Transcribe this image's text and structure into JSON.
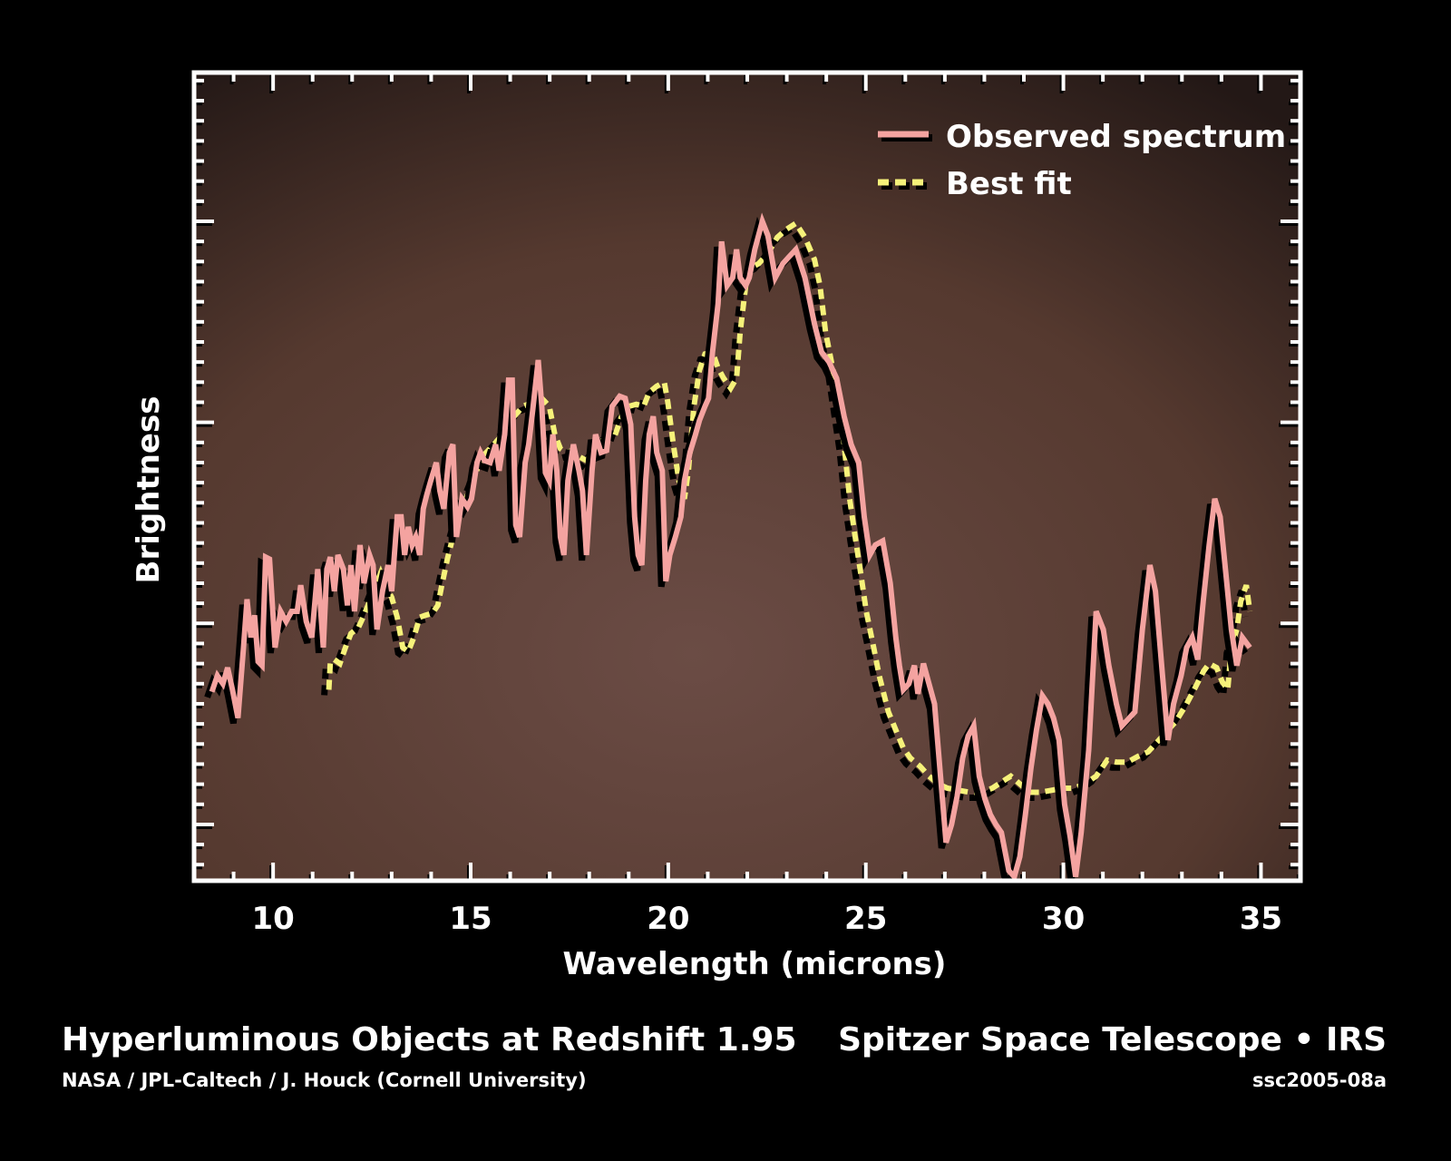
{
  "chart_data": {
    "type": "line",
    "xlabel": "Wavelength (microns)",
    "ylabel": "Brightness",
    "xlim": [
      8,
      36
    ],
    "ylim": [
      0.72,
      4.74
    ],
    "x_ticks": [
      10,
      15,
      20,
      25,
      30,
      35
    ],
    "x_tick_labels": [
      "10",
      "15",
      "20",
      "25",
      "30",
      "35"
    ],
    "y_tick_labels": [],
    "legend_position": "top-right",
    "grid": false,
    "series": [
      {
        "name": "Observed spectrum",
        "color": "#f4a3a0",
        "style": "solid",
        "x": [
          8.45,
          8.59,
          8.73,
          8.85,
          8.97,
          9.11,
          9.25,
          9.34,
          9.44,
          9.53,
          9.62,
          9.72,
          9.81,
          9.91,
          10.05,
          10.19,
          10.33,
          10.47,
          10.61,
          10.7,
          10.84,
          10.98,
          11.13,
          11.27,
          11.36,
          11.45,
          11.55,
          11.64,
          11.78,
          11.88,
          11.97,
          12.06,
          12.2,
          12.3,
          12.44,
          12.53,
          12.63,
          12.77,
          12.91,
          13.0,
          13.14,
          13.24,
          13.33,
          13.42,
          13.52,
          13.61,
          13.71,
          13.8,
          13.89,
          13.99,
          14.13,
          14.22,
          14.32,
          14.46,
          14.55,
          14.64,
          14.78,
          14.92,
          15.02,
          15.16,
          15.25,
          15.35,
          15.49,
          15.63,
          15.72,
          15.86,
          15.96,
          16.05,
          16.14,
          16.24,
          16.38,
          16.47,
          16.57,
          16.71,
          16.8,
          16.89,
          16.99,
          17.08,
          17.18,
          17.27,
          17.36,
          17.46,
          17.6,
          17.74,
          17.83,
          17.93,
          18.07,
          18.16,
          18.3,
          18.44,
          18.58,
          18.77,
          18.91,
          19.05,
          19.15,
          19.24,
          19.33,
          19.43,
          19.52,
          19.62,
          19.71,
          19.85,
          19.94,
          20.04,
          20.18,
          20.32,
          20.41,
          20.55,
          20.69,
          20.79,
          20.93,
          21.02,
          21.12,
          21.26,
          21.35,
          21.49,
          21.63,
          21.73,
          21.82,
          21.96,
          22.05,
          22.19,
          22.38,
          22.52,
          22.71,
          22.9,
          23.04,
          23.23,
          23.46,
          23.7,
          23.88,
          24.07,
          24.26,
          24.45,
          24.63,
          24.82,
          24.96,
          25.1,
          25.24,
          25.43,
          25.62,
          25.76,
          25.85,
          25.95,
          26.09,
          26.23,
          26.32,
          26.46,
          26.6,
          26.74,
          26.89,
          27.03,
          27.17,
          27.31,
          27.45,
          27.59,
          27.73,
          27.87,
          28.01,
          28.15,
          28.29,
          28.43,
          28.62,
          28.76,
          28.9,
          29.04,
          29.18,
          29.32,
          29.47,
          29.61,
          29.75,
          29.89,
          30.03,
          30.17,
          30.31,
          30.45,
          30.64,
          30.83,
          31.01,
          31.15,
          31.34,
          31.48,
          31.67,
          31.81,
          32.0,
          32.19,
          32.33,
          32.51,
          32.65,
          32.79,
          32.98,
          33.12,
          33.26,
          33.4,
          33.54,
          33.69,
          33.83,
          33.97,
          34.11,
          34.25,
          34.39,
          34.53,
          34.72
        ],
        "y": [
          1.66,
          1.74,
          1.7,
          1.78,
          1.67,
          1.53,
          1.88,
          2.12,
          1.93,
          2.04,
          1.81,
          1.79,
          2.33,
          2.32,
          1.88,
          2.06,
          2.01,
          2.06,
          2.06,
          2.19,
          2.01,
          1.93,
          2.27,
          1.88,
          2.27,
          2.33,
          2.16,
          2.34,
          2.27,
          2.09,
          2.29,
          2.06,
          2.39,
          2.2,
          2.34,
          2.29,
          1.97,
          2.16,
          2.29,
          2.16,
          2.53,
          2.53,
          2.34,
          2.48,
          2.39,
          2.43,
          2.34,
          2.57,
          2.64,
          2.71,
          2.8,
          2.66,
          2.57,
          2.85,
          2.89,
          2.43,
          2.62,
          2.58,
          2.62,
          2.8,
          2.85,
          2.81,
          2.8,
          2.89,
          2.76,
          2.94,
          3.21,
          3.21,
          2.49,
          2.43,
          2.8,
          2.89,
          3.06,
          3.31,
          3.08,
          2.75,
          2.71,
          2.94,
          2.76,
          2.43,
          2.34,
          2.71,
          2.89,
          2.76,
          2.66,
          2.34,
          2.76,
          2.94,
          2.85,
          2.86,
          3.08,
          3.13,
          3.12,
          2.99,
          2.53,
          2.34,
          2.29,
          2.71,
          2.94,
          3.03,
          2.85,
          2.76,
          2.21,
          2.34,
          2.43,
          2.53,
          2.71,
          2.85,
          2.94,
          3.01,
          3.08,
          3.12,
          3.35,
          3.59,
          3.9,
          3.68,
          3.72,
          3.86,
          3.72,
          3.68,
          3.72,
          3.86,
          4.0,
          3.93,
          3.72,
          3.79,
          3.82,
          3.86,
          3.72,
          3.49,
          3.35,
          3.3,
          3.22,
          3.03,
          2.89,
          2.8,
          2.53,
          2.34,
          2.39,
          2.41,
          2.2,
          1.93,
          1.79,
          1.67,
          1.7,
          1.79,
          1.65,
          1.8,
          1.7,
          1.6,
          1.24,
          0.91,
          1.0,
          1.14,
          1.33,
          1.44,
          1.49,
          1.24,
          1.13,
          1.05,
          1.0,
          0.96,
          0.77,
          0.74,
          0.84,
          1.05,
          1.28,
          1.47,
          1.64,
          1.6,
          1.53,
          1.42,
          1.1,
          0.94,
          0.74,
          0.96,
          1.37,
          2.06,
          1.97,
          1.79,
          1.6,
          1.49,
          1.53,
          1.56,
          1.97,
          2.29,
          2.16,
          1.74,
          1.42,
          1.6,
          1.74,
          1.88,
          1.93,
          1.82,
          2.11,
          2.39,
          2.62,
          2.53,
          2.25,
          1.97,
          1.79,
          1.93,
          1.88
        ]
      },
      {
        "name": "Best fit",
        "color": "#f6f27a",
        "style": "dashed",
        "x": [
          11.41,
          11.45,
          11.55,
          11.69,
          11.83,
          11.97,
          12.16,
          12.3,
          12.44,
          12.58,
          12.72,
          12.81,
          13.0,
          13.14,
          13.28,
          13.42,
          13.56,
          13.71,
          13.85,
          14.03,
          14.17,
          14.27,
          14.41,
          14.55,
          14.69,
          14.88,
          15.07,
          15.25,
          15.49,
          15.72,
          15.91,
          16.1,
          16.33,
          16.57,
          16.8,
          16.99,
          17.13,
          17.27,
          17.41,
          17.6,
          17.74,
          17.93,
          18.11,
          18.3,
          18.54,
          18.68,
          18.82,
          19.01,
          19.19,
          19.38,
          19.52,
          19.71,
          19.9,
          19.99,
          20.13,
          20.27,
          20.41,
          20.51,
          20.65,
          20.79,
          20.93,
          21.12,
          21.26,
          21.4,
          21.58,
          21.73,
          21.82,
          21.96,
          22.1,
          22.29,
          22.52,
          22.76,
          22.99,
          23.23,
          23.46,
          23.7,
          23.84,
          23.98,
          24.17,
          24.31,
          24.45,
          24.59,
          24.73,
          24.87,
          25.01,
          25.2,
          25.34,
          25.57,
          25.76,
          25.95,
          26.13,
          26.37,
          26.6,
          26.84,
          27.07,
          27.35,
          27.64,
          27.92,
          28.2,
          28.43,
          28.67,
          28.85,
          29.14,
          29.42,
          29.7,
          29.98,
          30.26,
          30.54,
          30.83,
          31.11,
          31.34,
          31.62,
          31.9,
          32.14,
          32.42,
          32.65,
          32.84,
          33.12,
          33.36,
          33.54,
          33.69,
          33.88,
          34.02,
          34.16,
          34.25,
          34.39,
          34.49,
          34.63,
          34.72
        ],
        "y": [
          1.67,
          1.81,
          1.82,
          1.8,
          1.88,
          1.95,
          1.98,
          2.04,
          2.11,
          2.18,
          2.25,
          2.2,
          2.13,
          2.03,
          1.88,
          1.86,
          1.93,
          2.03,
          2.04,
          2.05,
          2.09,
          2.19,
          2.32,
          2.43,
          2.53,
          2.62,
          2.71,
          2.82,
          2.87,
          2.92,
          2.98,
          3.03,
          3.08,
          3.1,
          3.12,
          3.08,
          2.94,
          2.87,
          2.85,
          2.86,
          2.83,
          2.81,
          2.86,
          2.9,
          2.96,
          2.95,
          3.03,
          3.08,
          3.09,
          3.08,
          3.15,
          3.18,
          3.2,
          3.1,
          2.89,
          2.71,
          2.62,
          2.76,
          3.08,
          3.26,
          3.34,
          3.35,
          3.27,
          3.22,
          3.17,
          3.22,
          3.45,
          3.68,
          3.77,
          3.79,
          3.84,
          3.92,
          3.96,
          3.99,
          3.92,
          3.81,
          3.68,
          3.45,
          3.26,
          3.08,
          2.89,
          2.62,
          2.43,
          2.25,
          2.06,
          1.88,
          1.74,
          1.56,
          1.47,
          1.38,
          1.33,
          1.29,
          1.24,
          1.2,
          1.18,
          1.17,
          1.16,
          1.16,
          1.18,
          1.21,
          1.24,
          1.21,
          1.16,
          1.16,
          1.17,
          1.18,
          1.18,
          1.2,
          1.24,
          1.32,
          1.31,
          1.31,
          1.34,
          1.36,
          1.42,
          1.47,
          1.51,
          1.6,
          1.69,
          1.76,
          1.8,
          1.78,
          1.71,
          1.67,
          1.88,
          1.97,
          2.11,
          2.19,
          2.06
        ]
      }
    ]
  },
  "caption": {
    "title": "Hyperluminous Objects at Redshift 1.95",
    "credit": "NASA / JPL-Caltech / J. Houck (Cornell University)",
    "mission": "Spitzer Space Telescope • IRS",
    "image_id": "ssc2005-08a"
  },
  "colors": {
    "background": "#000000",
    "plot_bg_dark": "#231816",
    "plot_bg_light": "#6b4c45",
    "frame": "#ffffff"
  }
}
